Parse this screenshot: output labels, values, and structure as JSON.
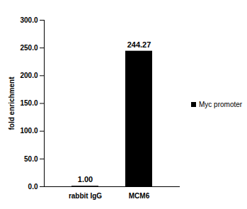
{
  "chart_data": {
    "type": "bar",
    "categories": [
      "rabbit IgG",
      "MCM6"
    ],
    "series": [
      {
        "name": "Myc promoter",
        "color": "#000000",
        "values": [
          1.0,
          244.27
        ],
        "value_labels": [
          "1.00",
          "244.27"
        ]
      }
    ],
    "y_label": "fold enrichment",
    "ylim": [
      0,
      300
    ],
    "yticks": [
      {
        "value": 0,
        "label": "0.0"
      },
      {
        "value": 50,
        "label": "50.0"
      },
      {
        "value": 100,
        "label": "100.0"
      },
      {
        "value": 150,
        "label": "150.0"
      },
      {
        "value": 200,
        "label": "200.0"
      },
      {
        "value": 250,
        "label": "250.0"
      },
      {
        "value": 300,
        "label": "300.0"
      }
    ],
    "data_labels": true,
    "legend": "right",
    "grid": false
  }
}
